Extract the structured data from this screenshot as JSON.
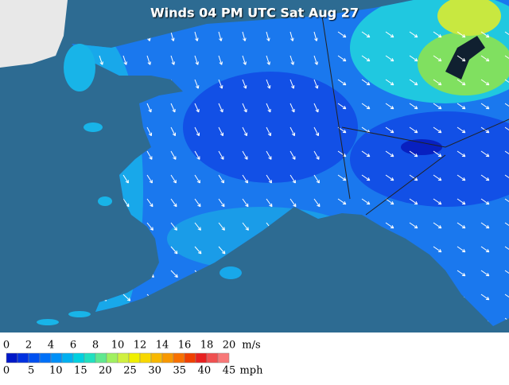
{
  "map": {
    "title": "Winds 04 PM UTC Sat Aug 27"
  },
  "legend": {
    "colors": [
      "#0018c8",
      "#0030e0",
      "#0050f0",
      "#0070f8",
      "#0090f8",
      "#00b0f0",
      "#00d0e0",
      "#20e0c0",
      "#60e890",
      "#a0f060",
      "#d0f040",
      "#f0f000",
      "#f8d800",
      "#f8b800",
      "#f89800",
      "#f87000",
      "#f04000",
      "#e82020",
      "#f05050",
      "#f87878"
    ],
    "ms": {
      "unit": "m/s",
      "ticks": [
        0,
        2,
        4,
        6,
        8,
        10,
        12,
        14,
        16,
        18,
        20
      ]
    },
    "mph": {
      "unit": "mph",
      "ticks": [
        0,
        5,
        10,
        15,
        20,
        25,
        30,
        35,
        40,
        45
      ]
    }
  }
}
